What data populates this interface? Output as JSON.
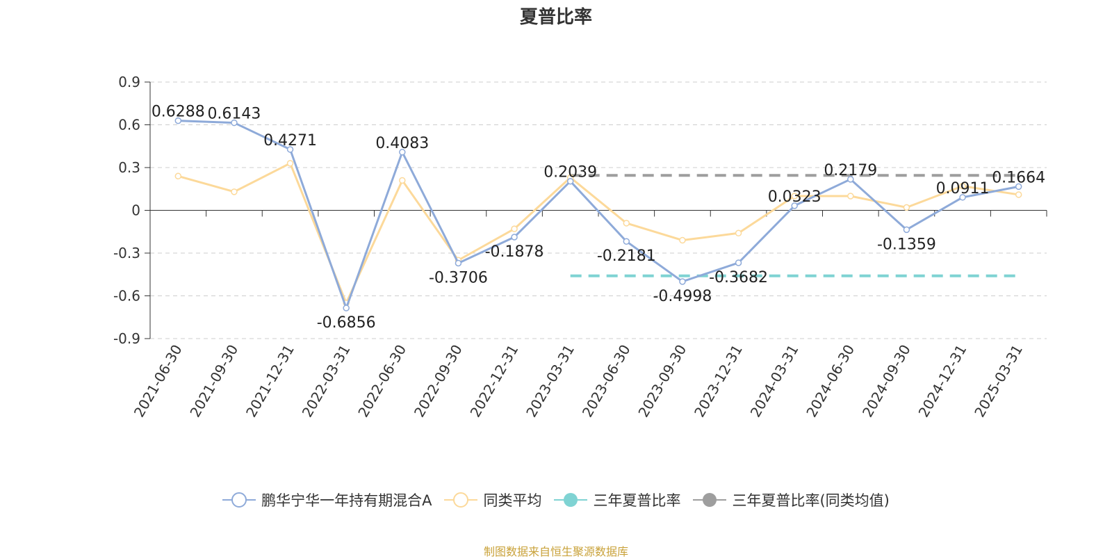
{
  "chart_data": {
    "type": "line",
    "title": "夏普比率",
    "categories": [
      "2021-06-30",
      "2021-09-30",
      "2021-12-31",
      "2022-03-31",
      "2022-06-30",
      "2022-09-30",
      "2022-12-31",
      "2023-03-31",
      "2023-06-30",
      "2023-09-30",
      "2023-12-31",
      "2024-03-31",
      "2024-06-30",
      "2024-09-30",
      "2024-12-31",
      "2025-03-31"
    ],
    "yticks": [
      "0.9",
      "0.6",
      "0.3",
      "0",
      "-0.3",
      "-0.6",
      "-0.9"
    ],
    "ylim": [
      -0.9,
      0.9
    ],
    "grid": true,
    "legend_position": "bottom",
    "series": [
      {
        "name": "鹏华宁华一年持有期混合A",
        "color": "#8eaad9",
        "values": [
          0.6288,
          0.6143,
          0.4271,
          -0.6856,
          0.4083,
          -0.3706,
          -0.1878,
          0.2039,
          -0.2181,
          -0.4998,
          -0.3682,
          0.0323,
          0.2179,
          -0.1359,
          0.0911,
          0.1664
        ],
        "labels": [
          "0.6288",
          "0.6143",
          "0.4271",
          "-0.6856",
          "0.4083",
          "-0.3706",
          "-0.1878",
          "0.2039",
          "-0.2181",
          "-0.4998",
          "-0.3682",
          "0.0323",
          "0.2179",
          "-0.1359",
          "0.0911",
          "0.1664"
        ]
      },
      {
        "name": "同类平均",
        "color": "#fcd99a",
        "values": [
          0.24,
          0.13,
          0.33,
          -0.65,
          0.21,
          -0.35,
          -0.13,
          0.23,
          -0.09,
          -0.21,
          -0.16,
          0.1,
          0.1,
          0.02,
          0.17,
          0.11
        ]
      },
      {
        "name": "三年夏普比率",
        "color": "#7fd3d3",
        "style": "dashed",
        "from": "2023-03-31",
        "to": "2025-03-31",
        "value": -0.46
      },
      {
        "name": "三年夏普比率(同类均值)",
        "color": "#9e9e9e",
        "style": "dashed",
        "from": "2023-03-31",
        "to": "2025-03-31",
        "value": 0.245
      }
    ],
    "source_note": "制图数据来自恒生聚源数据库"
  }
}
